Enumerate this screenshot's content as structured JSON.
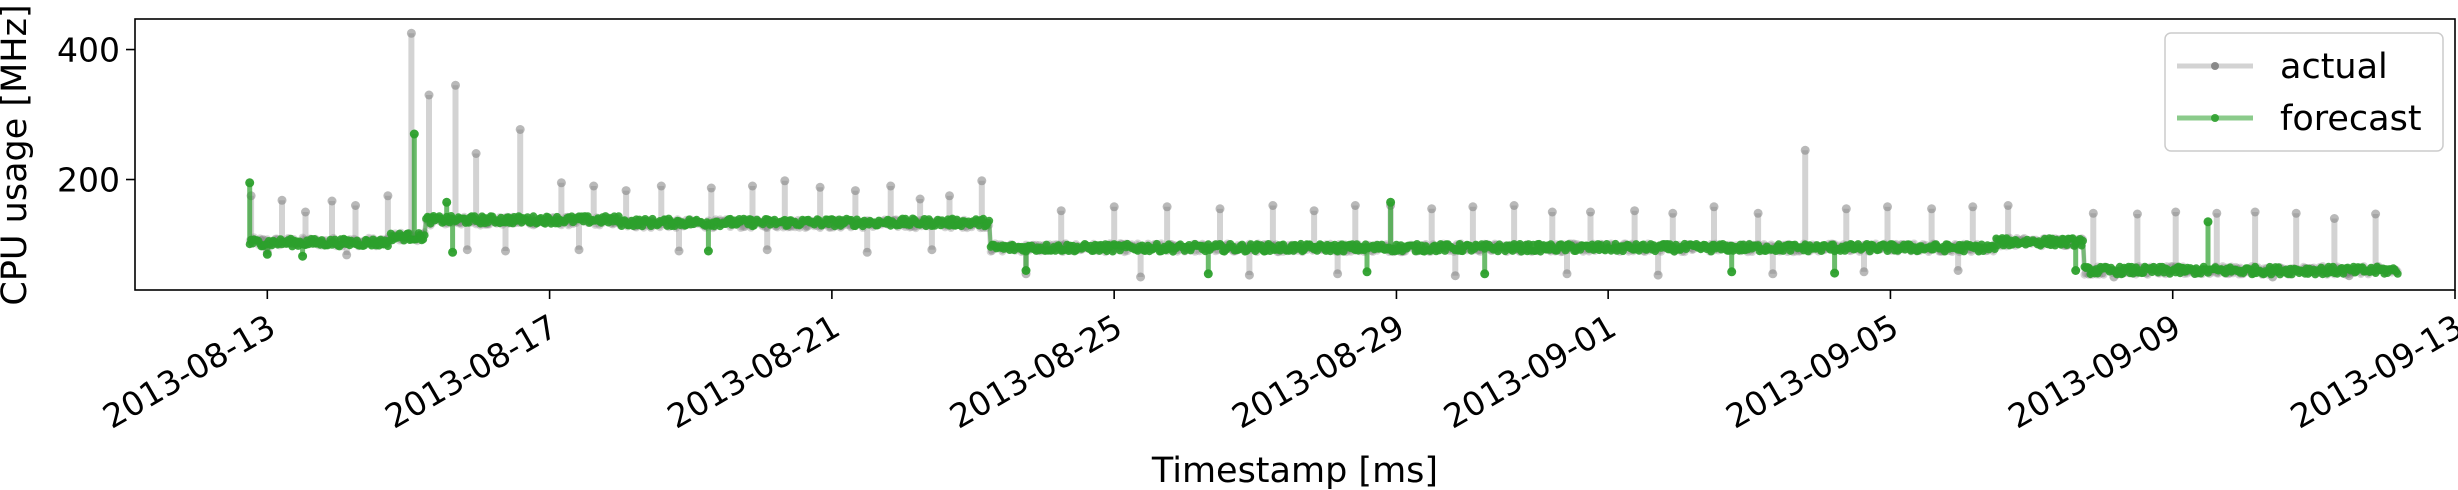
{
  "chart_data": {
    "type": "line",
    "title": "",
    "xlabel": "Timestamp [ms]",
    "ylabel": "CPU usage [MHz]",
    "x_type": "date",
    "xlim": [
      "2013-08-11T03:00",
      "2013-09-13T00:00"
    ],
    "ylim": [
      30,
      447
    ],
    "x_ticks": [
      "2013-08-13",
      "2013-08-17",
      "2013-08-21",
      "2013-08-25",
      "2013-08-29",
      "2013-09-01",
      "2013-09-05",
      "2013-09-09",
      "2013-09-13"
    ],
    "y_ticks": [
      200,
      400
    ],
    "grid": false,
    "legend_position": "top-right",
    "series": [
      {
        "name": "actual",
        "color": "#808080",
        "level_segments": [
          {
            "from": "2013-08-12T18:00",
            "to": "2013-08-14T18:00",
            "level": 104
          },
          {
            "from": "2013-08-14T18:00",
            "to": "2013-08-15T06:00",
            "level": 112
          },
          {
            "from": "2013-08-15T06:00",
            "to": "2013-08-18T00:00",
            "level": 136
          },
          {
            "from": "2013-08-18T00:00",
            "to": "2013-08-23T06:00",
            "level": 132
          },
          {
            "from": "2013-08-23T06:00",
            "to": "2013-09-06T12:00",
            "level": 95
          },
          {
            "from": "2013-09-06T12:00",
            "to": "2013-09-07T18:00",
            "level": 104
          },
          {
            "from": "2013-09-07T18:00",
            "to": "2013-09-12T05:00",
            "level": 60
          }
        ],
        "spikes": [
          [
            "2013-08-12T18:30",
            175
          ],
          [
            "2013-08-13T05:00",
            168
          ],
          [
            "2013-08-13T13:00",
            150
          ],
          [
            "2013-08-13T22:00",
            167
          ],
          [
            "2013-08-14T06:00",
            160
          ],
          [
            "2013-08-14T17:00",
            175
          ],
          [
            "2013-08-15T01:00",
            425
          ],
          [
            "2013-08-15T07:00",
            330
          ],
          [
            "2013-08-15T16:00",
            345
          ],
          [
            "2013-08-15T23:00",
            240
          ],
          [
            "2013-08-16T14:00",
            277
          ],
          [
            "2013-08-17T04:00",
            195
          ],
          [
            "2013-08-17T15:00",
            190
          ],
          [
            "2013-08-18T02:00",
            183
          ],
          [
            "2013-08-18T14:00",
            190
          ],
          [
            "2013-08-19T07:00",
            187
          ],
          [
            "2013-08-19T21:00",
            190
          ],
          [
            "2013-08-20T08:00",
            198
          ],
          [
            "2013-08-20T20:00",
            188
          ],
          [
            "2013-08-21T08:00",
            183
          ],
          [
            "2013-08-21T20:00",
            190
          ],
          [
            "2013-08-22T06:00",
            170
          ],
          [
            "2013-08-22T16:00",
            175
          ],
          [
            "2013-08-23T03:00",
            198
          ],
          [
            "2013-08-24T06:00",
            152
          ],
          [
            "2013-08-25T00:00",
            158
          ],
          [
            "2013-08-25T18:00",
            158
          ],
          [
            "2013-08-26T12:00",
            155
          ],
          [
            "2013-08-27T06:00",
            160
          ],
          [
            "2013-08-27T20:00",
            152
          ],
          [
            "2013-08-28T10:00",
            160
          ],
          [
            "2013-08-28T22:00",
            160
          ],
          [
            "2013-08-29T12:00",
            155
          ],
          [
            "2013-08-30T02:00",
            158
          ],
          [
            "2013-08-30T16:00",
            160
          ],
          [
            "2013-08-31T05:00",
            150
          ],
          [
            "2013-08-31T18:00",
            150
          ],
          [
            "2013-09-01T09:00",
            152
          ],
          [
            "2013-09-01T22:00",
            148
          ],
          [
            "2013-09-02T12:00",
            158
          ],
          [
            "2013-09-03T03:00",
            148
          ],
          [
            "2013-09-03T19:00",
            245
          ],
          [
            "2013-09-04T09:00",
            155
          ],
          [
            "2013-09-04T23:00",
            158
          ],
          [
            "2013-09-05T14:00",
            155
          ],
          [
            "2013-09-06T04:00",
            158
          ],
          [
            "2013-09-06T16:00",
            160
          ],
          [
            "2013-09-07T21:00",
            148
          ],
          [
            "2013-09-08T12:00",
            147
          ],
          [
            "2013-09-09T01:00",
            150
          ],
          [
            "2013-09-09T15:00",
            148
          ],
          [
            "2013-09-10T04:00",
            150
          ],
          [
            "2013-09-10T18:00",
            148
          ],
          [
            "2013-09-11T07:00",
            140
          ],
          [
            "2013-09-11T21:00",
            147
          ]
        ],
        "dips": [
          [
            "2013-08-13T00:00",
            88
          ],
          [
            "2013-08-14T03:00",
            84
          ],
          [
            "2013-08-15T20:00",
            92
          ],
          [
            "2013-08-16T09:00",
            90
          ],
          [
            "2013-08-17T10:00",
            92
          ],
          [
            "2013-08-18T20:00",
            90
          ],
          [
            "2013-08-20T02:00",
            92
          ],
          [
            "2013-08-21T12:00",
            88
          ],
          [
            "2013-08-22T10:00",
            92
          ],
          [
            "2013-08-23T18:00",
            55
          ],
          [
            "2013-08-25T09:00",
            50
          ],
          [
            "2013-08-26T22:00",
            53
          ],
          [
            "2013-08-28T04:00",
            55
          ],
          [
            "2013-08-29T20:00",
            52
          ],
          [
            "2013-08-31T10:00",
            55
          ],
          [
            "2013-09-01T17:00",
            53
          ],
          [
            "2013-09-03T08:00",
            55
          ],
          [
            "2013-09-04T15:00",
            58
          ],
          [
            "2013-09-05T23:00",
            60
          ],
          [
            "2013-09-08T04:00",
            50
          ],
          [
            "2013-09-10T10:00",
            50
          ],
          [
            "2013-09-11T12:00",
            52
          ]
        ]
      },
      {
        "name": "forecast",
        "color": "#2ca02c",
        "level_segments": [
          {
            "from": "2013-08-12T18:00",
            "to": "2013-08-14T18:00",
            "level": 103
          },
          {
            "from": "2013-08-14T18:00",
            "to": "2013-08-15T06:00",
            "level": 112
          },
          {
            "from": "2013-08-15T06:00",
            "to": "2013-08-18T00:00",
            "level": 138
          },
          {
            "from": "2013-08-18T00:00",
            "to": "2013-08-23T06:00",
            "level": 134
          },
          {
            "from": "2013-08-23T06:00",
            "to": "2013-09-06T12:00",
            "level": 95
          },
          {
            "from": "2013-09-06T12:00",
            "to": "2013-09-07T18:00",
            "level": 104
          },
          {
            "from": "2013-09-07T18:00",
            "to": "2013-09-12T05:00",
            "level": 60
          }
        ],
        "spikes": [
          [
            "2013-08-12T18:00",
            195
          ],
          [
            "2013-08-15T02:00",
            270
          ],
          [
            "2013-08-15T13:00",
            165
          ],
          [
            "2013-08-28T22:00",
            165
          ],
          [
            "2013-09-09T12:00",
            135
          ]
        ],
        "dips": [
          [
            "2013-08-13T00:00",
            85
          ],
          [
            "2013-08-13T12:00",
            82
          ],
          [
            "2013-08-15T15:00",
            88
          ],
          [
            "2013-08-19T06:00",
            90
          ],
          [
            "2013-08-23T18:00",
            60
          ],
          [
            "2013-08-26T08:00",
            55
          ],
          [
            "2013-08-28T14:00",
            58
          ],
          [
            "2013-08-30T06:00",
            55
          ],
          [
            "2013-09-02T18:00",
            58
          ],
          [
            "2013-09-04T05:00",
            56
          ],
          [
            "2013-09-07T15:00",
            60
          ]
        ]
      }
    ]
  }
}
